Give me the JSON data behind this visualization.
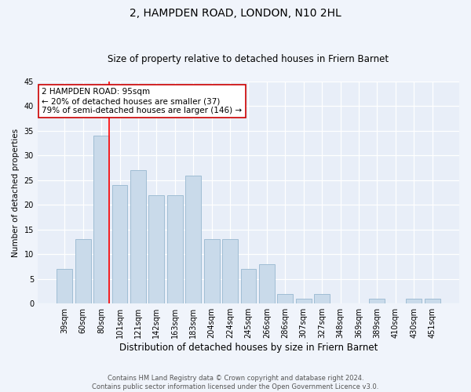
{
  "title": "2, HAMPDEN ROAD, LONDON, N10 2HL",
  "subtitle": "Size of property relative to detached houses in Friern Barnet",
  "xlabel": "Distribution of detached houses by size in Friern Barnet",
  "ylabel": "Number of detached properties",
  "categories": [
    "39sqm",
    "60sqm",
    "80sqm",
    "101sqm",
    "121sqm",
    "142sqm",
    "163sqm",
    "183sqm",
    "204sqm",
    "224sqm",
    "245sqm",
    "266sqm",
    "286sqm",
    "307sqm",
    "327sqm",
    "348sqm",
    "369sqm",
    "389sqm",
    "410sqm",
    "430sqm",
    "451sqm"
  ],
  "values": [
    7,
    13,
    34,
    24,
    27,
    22,
    22,
    26,
    13,
    13,
    7,
    8,
    2,
    1,
    2,
    0,
    0,
    1,
    0,
    1,
    1
  ],
  "bar_color": "#c9daea",
  "bar_edge_color": "#a0bdd4",
  "vline_x": 2.42,
  "vline_color": "red",
  "annotation_text": "2 HAMPDEN ROAD: 95sqm\n← 20% of detached houses are smaller (37)\n79% of semi-detached houses are larger (146) →",
  "annotation_box_color": "white",
  "annotation_box_edge": "#cc0000",
  "ylim": [
    0,
    45
  ],
  "yticks": [
    0,
    5,
    10,
    15,
    20,
    25,
    30,
    35,
    40,
    45
  ],
  "footer": "Contains HM Land Registry data © Crown copyright and database right 2024.\nContains public sector information licensed under the Open Government Licence v3.0.",
  "background_color": "#f0f4fb",
  "plot_background": "#e8eef8",
  "title_fontsize": 10,
  "subtitle_fontsize": 8.5,
  "ylabel_fontsize": 7.5,
  "xlabel_fontsize": 8.5,
  "tick_fontsize": 7,
  "annotation_fontsize": 7.5,
  "footer_fontsize": 6
}
